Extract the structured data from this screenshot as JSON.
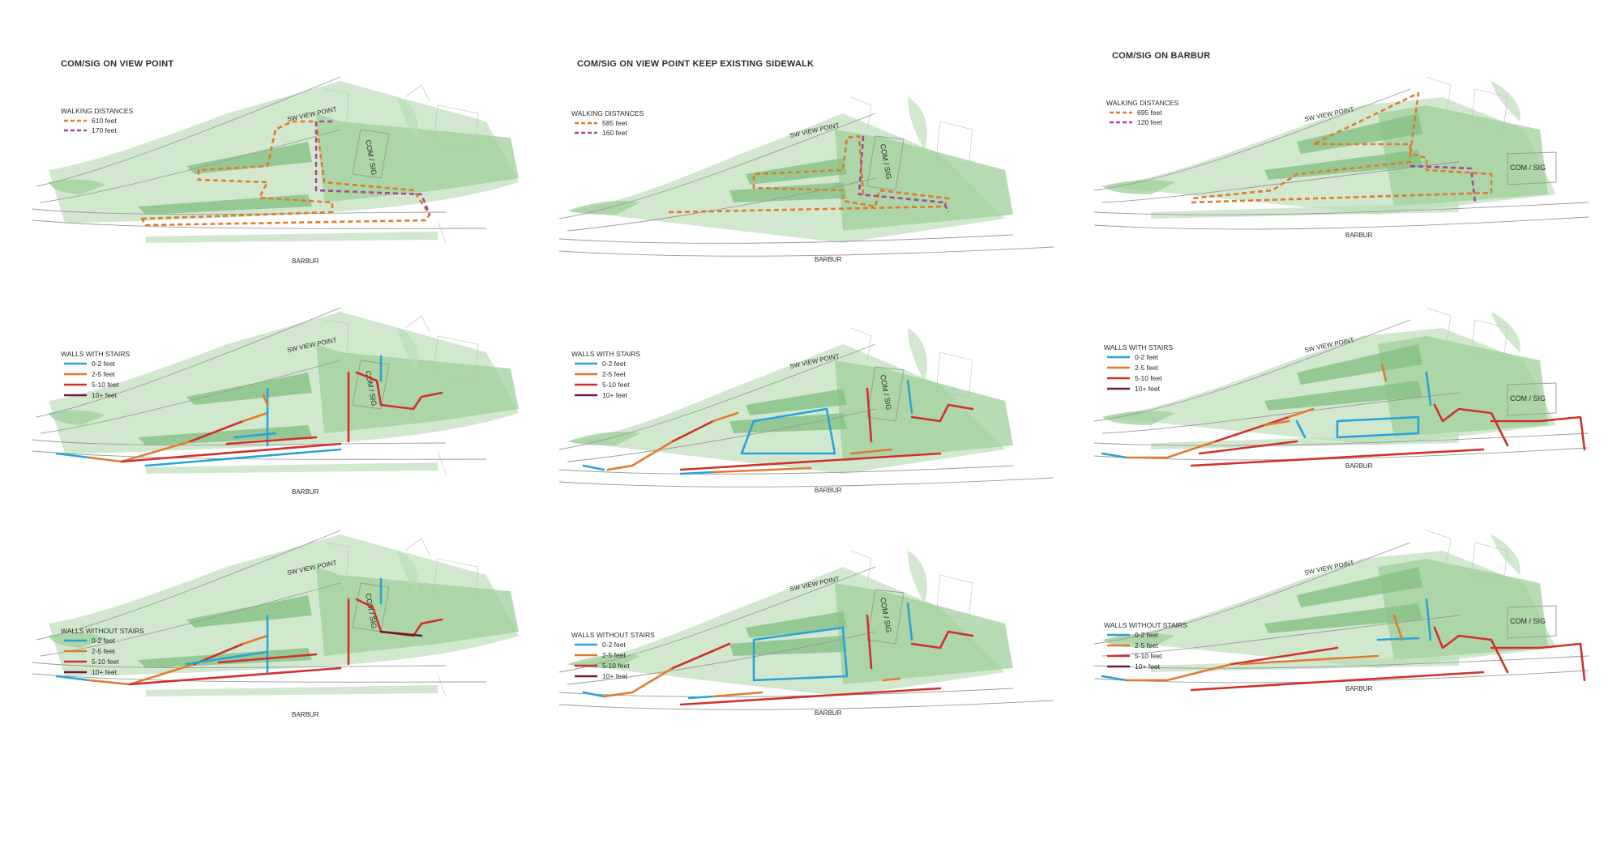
{
  "columns": [
    {
      "title": "COM/SIG ON VIEW POINT"
    },
    {
      "title": "COM/SIG ON VIEW POINT KEEP EXISTING SIDEWALK"
    },
    {
      "title": "COM/SIG ON BARBUR"
    }
  ],
  "streets": {
    "top": "SW VIEW POINT",
    "bottom": "BARBUR",
    "box": "COM / SIG"
  },
  "walking": {
    "heading": "WALKING DISTANCES",
    "colors": [
      "#e07b2e",
      "#a44a9a"
    ],
    "panels": [
      [
        "610 feet",
        "170 feet"
      ],
      [
        "585 feet",
        "160 feet"
      ],
      [
        "695 feet",
        "120 feet"
      ]
    ]
  },
  "walls": {
    "levels": [
      "0-2 feet",
      "2-5 feet",
      "5-10 feet",
      "10+ feet"
    ],
    "colors": [
      "#2aa3d8",
      "#e07b2e",
      "#d0312d",
      "#6b1a3a"
    ],
    "with_heading": "WALLS WITH STAIRS",
    "without_heading": [
      "WALLS WITHOUT STAIRS",
      "WALLS WITHOUT  STAIRS",
      "WALLS WITHOUT STAIRS"
    ]
  }
}
